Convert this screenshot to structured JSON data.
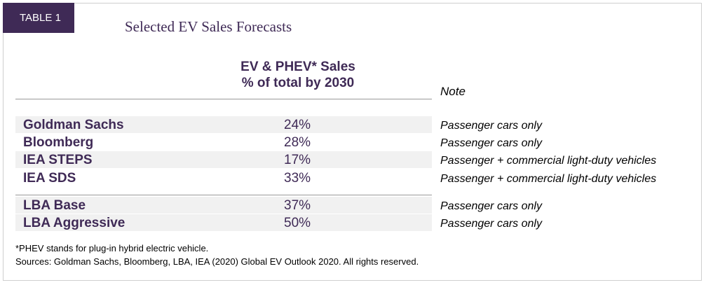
{
  "tag": "TABLE 1",
  "title": "Selected EV Sales Forecasts",
  "column_header": {
    "line1": "EV & PHEV* Sales",
    "line2": "% of total by 2030",
    "note": "Note"
  },
  "rows": [
    {
      "source": "Goldman Sachs",
      "value": "24%",
      "note": "Passenger cars only"
    },
    {
      "source": "Bloomberg",
      "value": "28%",
      "note": "Passenger cars only"
    },
    {
      "source": "IEA STEPS",
      "value": "17%",
      "note": "Passenger + commercial light-duty vehicles"
    },
    {
      "source": "IEA SDS",
      "value": "33%",
      "note": "Passenger + commercial light-duty vehicles"
    },
    {
      "source": "LBA Base",
      "value": "37%",
      "note": "Passenger cars only"
    },
    {
      "source": "LBA Aggressive",
      "value": "50%",
      "note": "Passenger cars only"
    }
  ],
  "footnotes": {
    "phev": "*PHEV stands for plug-in hybrid electric vehicle.",
    "sources": "Sources: Goldman Sachs, Bloomberg, LBA, IEA (2020) Global EV Outlook 2020. All rights reserved."
  }
}
